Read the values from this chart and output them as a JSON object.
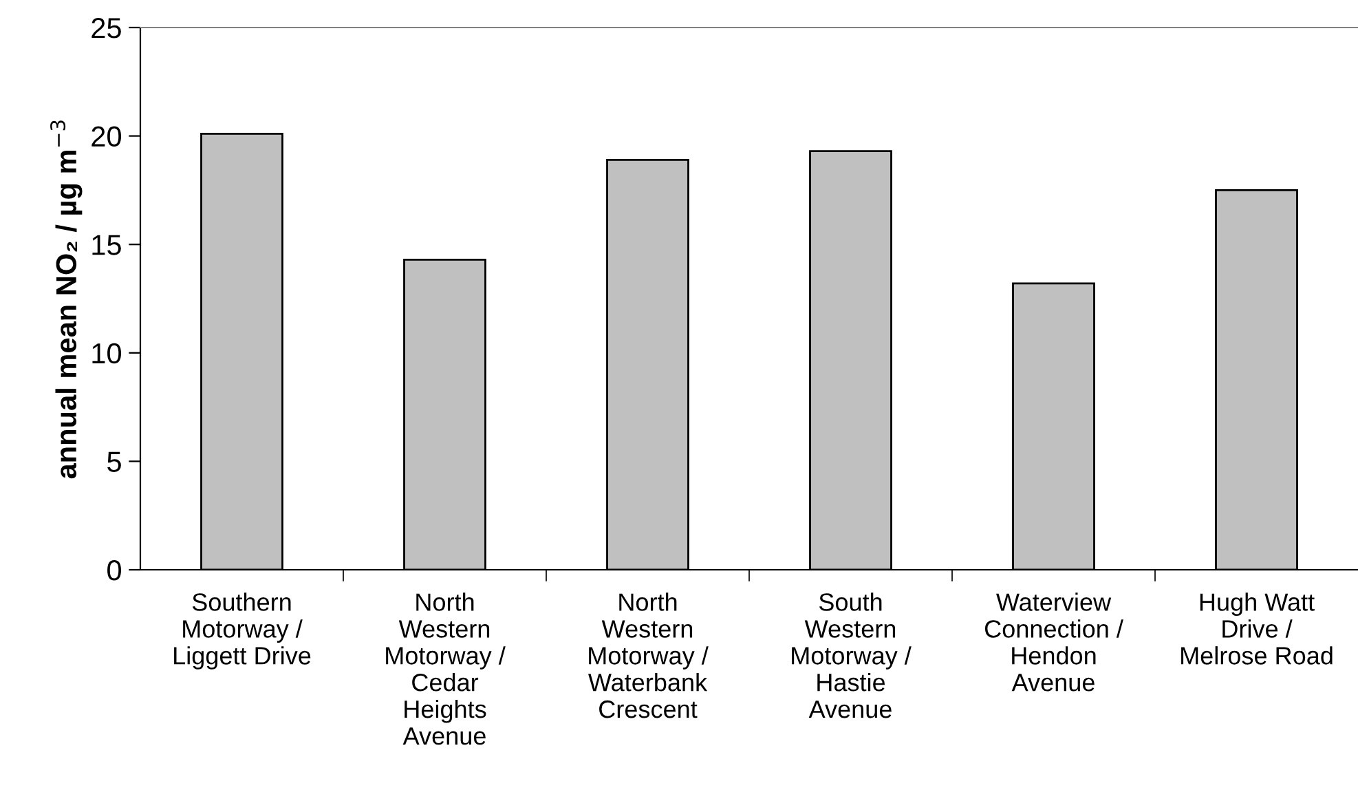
{
  "chart_data": {
    "type": "bar",
    "ylabel": "annual mean NO₂ / µg m$^{−3}$",
    "categories": [
      "Southern\nMotorway /\nLiggett Drive",
      "North\nWestern\nMotorway /\nCedar\nHeights\nAvenue",
      "North\nWestern\nMotorway /\nWaterbank\nCrescent",
      "South\nWestern\nMotorway /\nHastie\nAvenue",
      "Waterview\nConnection /\nHendon\nAvenue",
      "Hugh Watt\nDrive /\nMelrose Road"
    ],
    "values": [
      20.1,
      14.3,
      18.9,
      19.3,
      13.2,
      17.5
    ],
    "color": "#c0c0c0",
    "ylim": [
      0,
      25
    ],
    "yticks": [
      0,
      5,
      10,
      15,
      20,
      25
    ],
    "grid": false,
    "legend": false
  }
}
